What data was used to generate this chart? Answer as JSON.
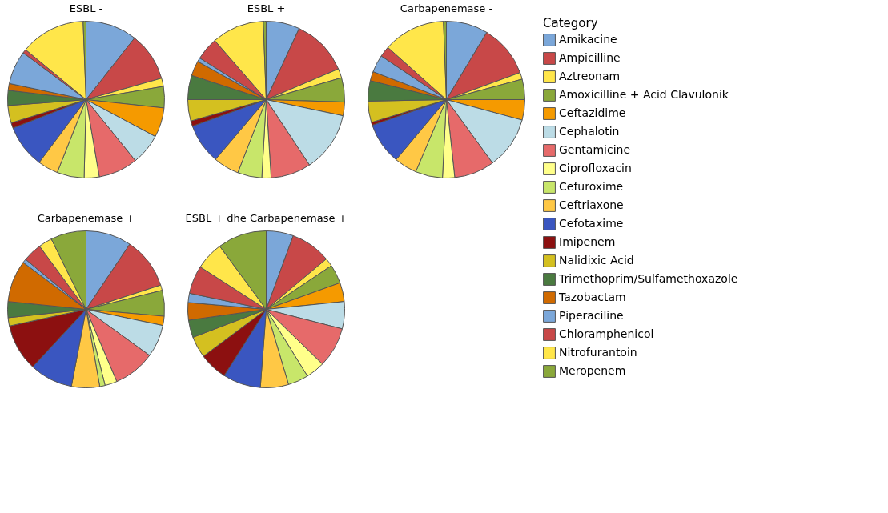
{
  "chart_data": {
    "type": "pie",
    "legend": "right",
    "legend_title": "Category",
    "categories": [
      "Amikacine",
      "Ampicilline",
      "Aztreonam",
      "Amoxicilline + Acid Clavulonik",
      "Ceftazidime",
      "Cephalotin",
      "Gentamicine",
      "Ciprofloxacin",
      "Cefuroxime",
      "Ceftriaxone",
      "Cefotaxime",
      "Imipenem",
      "Nalidixic Acid",
      "Trimethoprim/Sulfamethoxazole",
      "Tazobactam",
      "Piperaciline",
      "Chloramphenicol",
      "Nitrofurantoin",
      "Meropenem"
    ],
    "colors": [
      "#7ba7d9",
      "#c84848",
      "#ffe64a",
      "#8aa83a",
      "#f59a00",
      "#bcdce6",
      "#e66a6a",
      "#ffff8a",
      "#c8e66a",
      "#ffc845",
      "#3a56c0",
      "#8c1010",
      "#d4c020",
      "#4a7a40",
      "#d06a00",
      "#7ba7d9",
      "#c84848",
      "#ffe64a",
      "#8aa83a"
    ],
    "series": [
      {
        "name": "ESBL -",
        "values": [
          10.6,
          10.0,
          1.7,
          4.4,
          6.1,
          6.4,
          8.1,
          3.1,
          5.6,
          4.2,
          8.9,
          1.1,
          3.6,
          3.1,
          1.4,
          6.9,
          0.8,
          13.4,
          0.6
        ]
      },
      {
        "name": "ESBL +",
        "values": [
          6.9,
          11.7,
          1.9,
          5.0,
          2.8,
          12.4,
          8.3,
          1.9,
          5.0,
          5.3,
          8.3,
          1.1,
          4.4,
          5.0,
          3.1,
          0.8,
          4.7,
          10.8,
          0.6
        ]
      },
      {
        "name": "Carbapenemase -",
        "values": [
          8.6,
          10.8,
          1.4,
          4.2,
          4.2,
          10.8,
          8.3,
          2.5,
          5.6,
          4.7,
          8.6,
          0.6,
          4.4,
          4.2,
          1.9,
          3.6,
          2.2,
          12.8,
          0.6
        ]
      },
      {
        "name": "Carbapenemase +",
        "values": [
          9.4,
          10.6,
          1.1,
          5.3,
          1.9,
          6.7,
          8.6,
          2.5,
          1.1,
          5.8,
          8.9,
          9.7,
          1.7,
          3.3,
          8.6,
          0.8,
          3.9,
          2.8,
          7.3
        ]
      },
      {
        "name": "ESBL + dhe Carbapenemase +",
        "values": [
          5.6,
          8.3,
          1.7,
          3.9,
          3.9,
          5.6,
          8.3,
          3.9,
          4.2,
          5.8,
          7.8,
          5.8,
          4.4,
          3.6,
          3.6,
          1.9,
          5.8,
          5.8,
          10.1
        ]
      }
    ]
  }
}
